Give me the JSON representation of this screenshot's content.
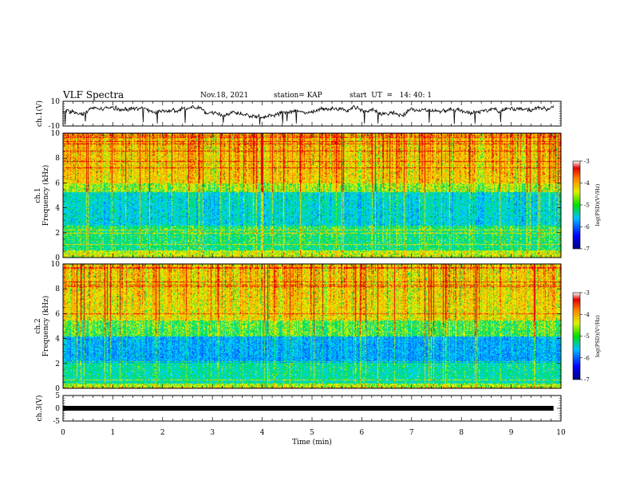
{
  "header": {
    "title": "VLF Spectra",
    "date": "Nov.18, 2021",
    "station": "station= KAP",
    "start": "start  UT  =   14: 40: 1"
  },
  "chart_data": [
    {
      "type": "line",
      "name": "ch1-waveform",
      "ylabel": "ch.1(V)",
      "ylim": [
        -10,
        10
      ],
      "y_ticks": [
        "10",
        "-10"
      ],
      "xlim": [
        0,
        10
      ],
      "series_x_range": [
        0,
        9.85
      ],
      "approx_level": 2.5
    },
    {
      "type": "heatmap",
      "name": "ch1-spectrogram",
      "ylabel": [
        "ch.1",
        "Frequency  (kHz)"
      ],
      "ylim": [
        0,
        10
      ],
      "y_ticks": [
        "0",
        "2",
        "4",
        "6",
        "8",
        "10"
      ],
      "xlim": [
        0,
        10
      ],
      "colorbar": {
        "label": "log(PSD)(V²/Hz)",
        "range": [
          -7,
          -3
        ],
        "ticks": [
          "-3",
          "-4",
          "-5",
          "-6",
          "-7"
        ]
      }
    },
    {
      "type": "heatmap",
      "name": "ch2-spectrogram",
      "ylabel": [
        "ch.2",
        "Frequency  (kHz)"
      ],
      "ylim": [
        0,
        10
      ],
      "y_ticks": [
        "0",
        "2",
        "4",
        "6",
        "8",
        "10"
      ],
      "xlim": [
        0,
        10
      ],
      "colorbar": {
        "label": "log(PSD)(V²/Hz)",
        "range": [
          -7,
          -3
        ],
        "ticks": [
          "-3",
          "-4",
          "-5",
          "-6",
          "-7"
        ]
      }
    },
    {
      "type": "line",
      "name": "ch3-waveform",
      "ylabel": "ch.3(V)",
      "ylim": [
        -5,
        5
      ],
      "y_ticks": [
        "5",
        "0",
        "-5"
      ],
      "xlim": [
        0,
        10
      ],
      "series_x_range": [
        0,
        9.85
      ],
      "approx_level": 0
    }
  ],
  "x_axis": {
    "label": "Time  (min)",
    "ticks": [
      "0",
      "1",
      "2",
      "3",
      "4",
      "5",
      "6",
      "7",
      "8",
      "9",
      "10"
    ]
  },
  "colors": {
    "heat": [
      "#0000b0",
      "#0060ff",
      "#00d0ff",
      "#00e060",
      "#e0f000",
      "#ffa000",
      "#e00000"
    ]
  }
}
